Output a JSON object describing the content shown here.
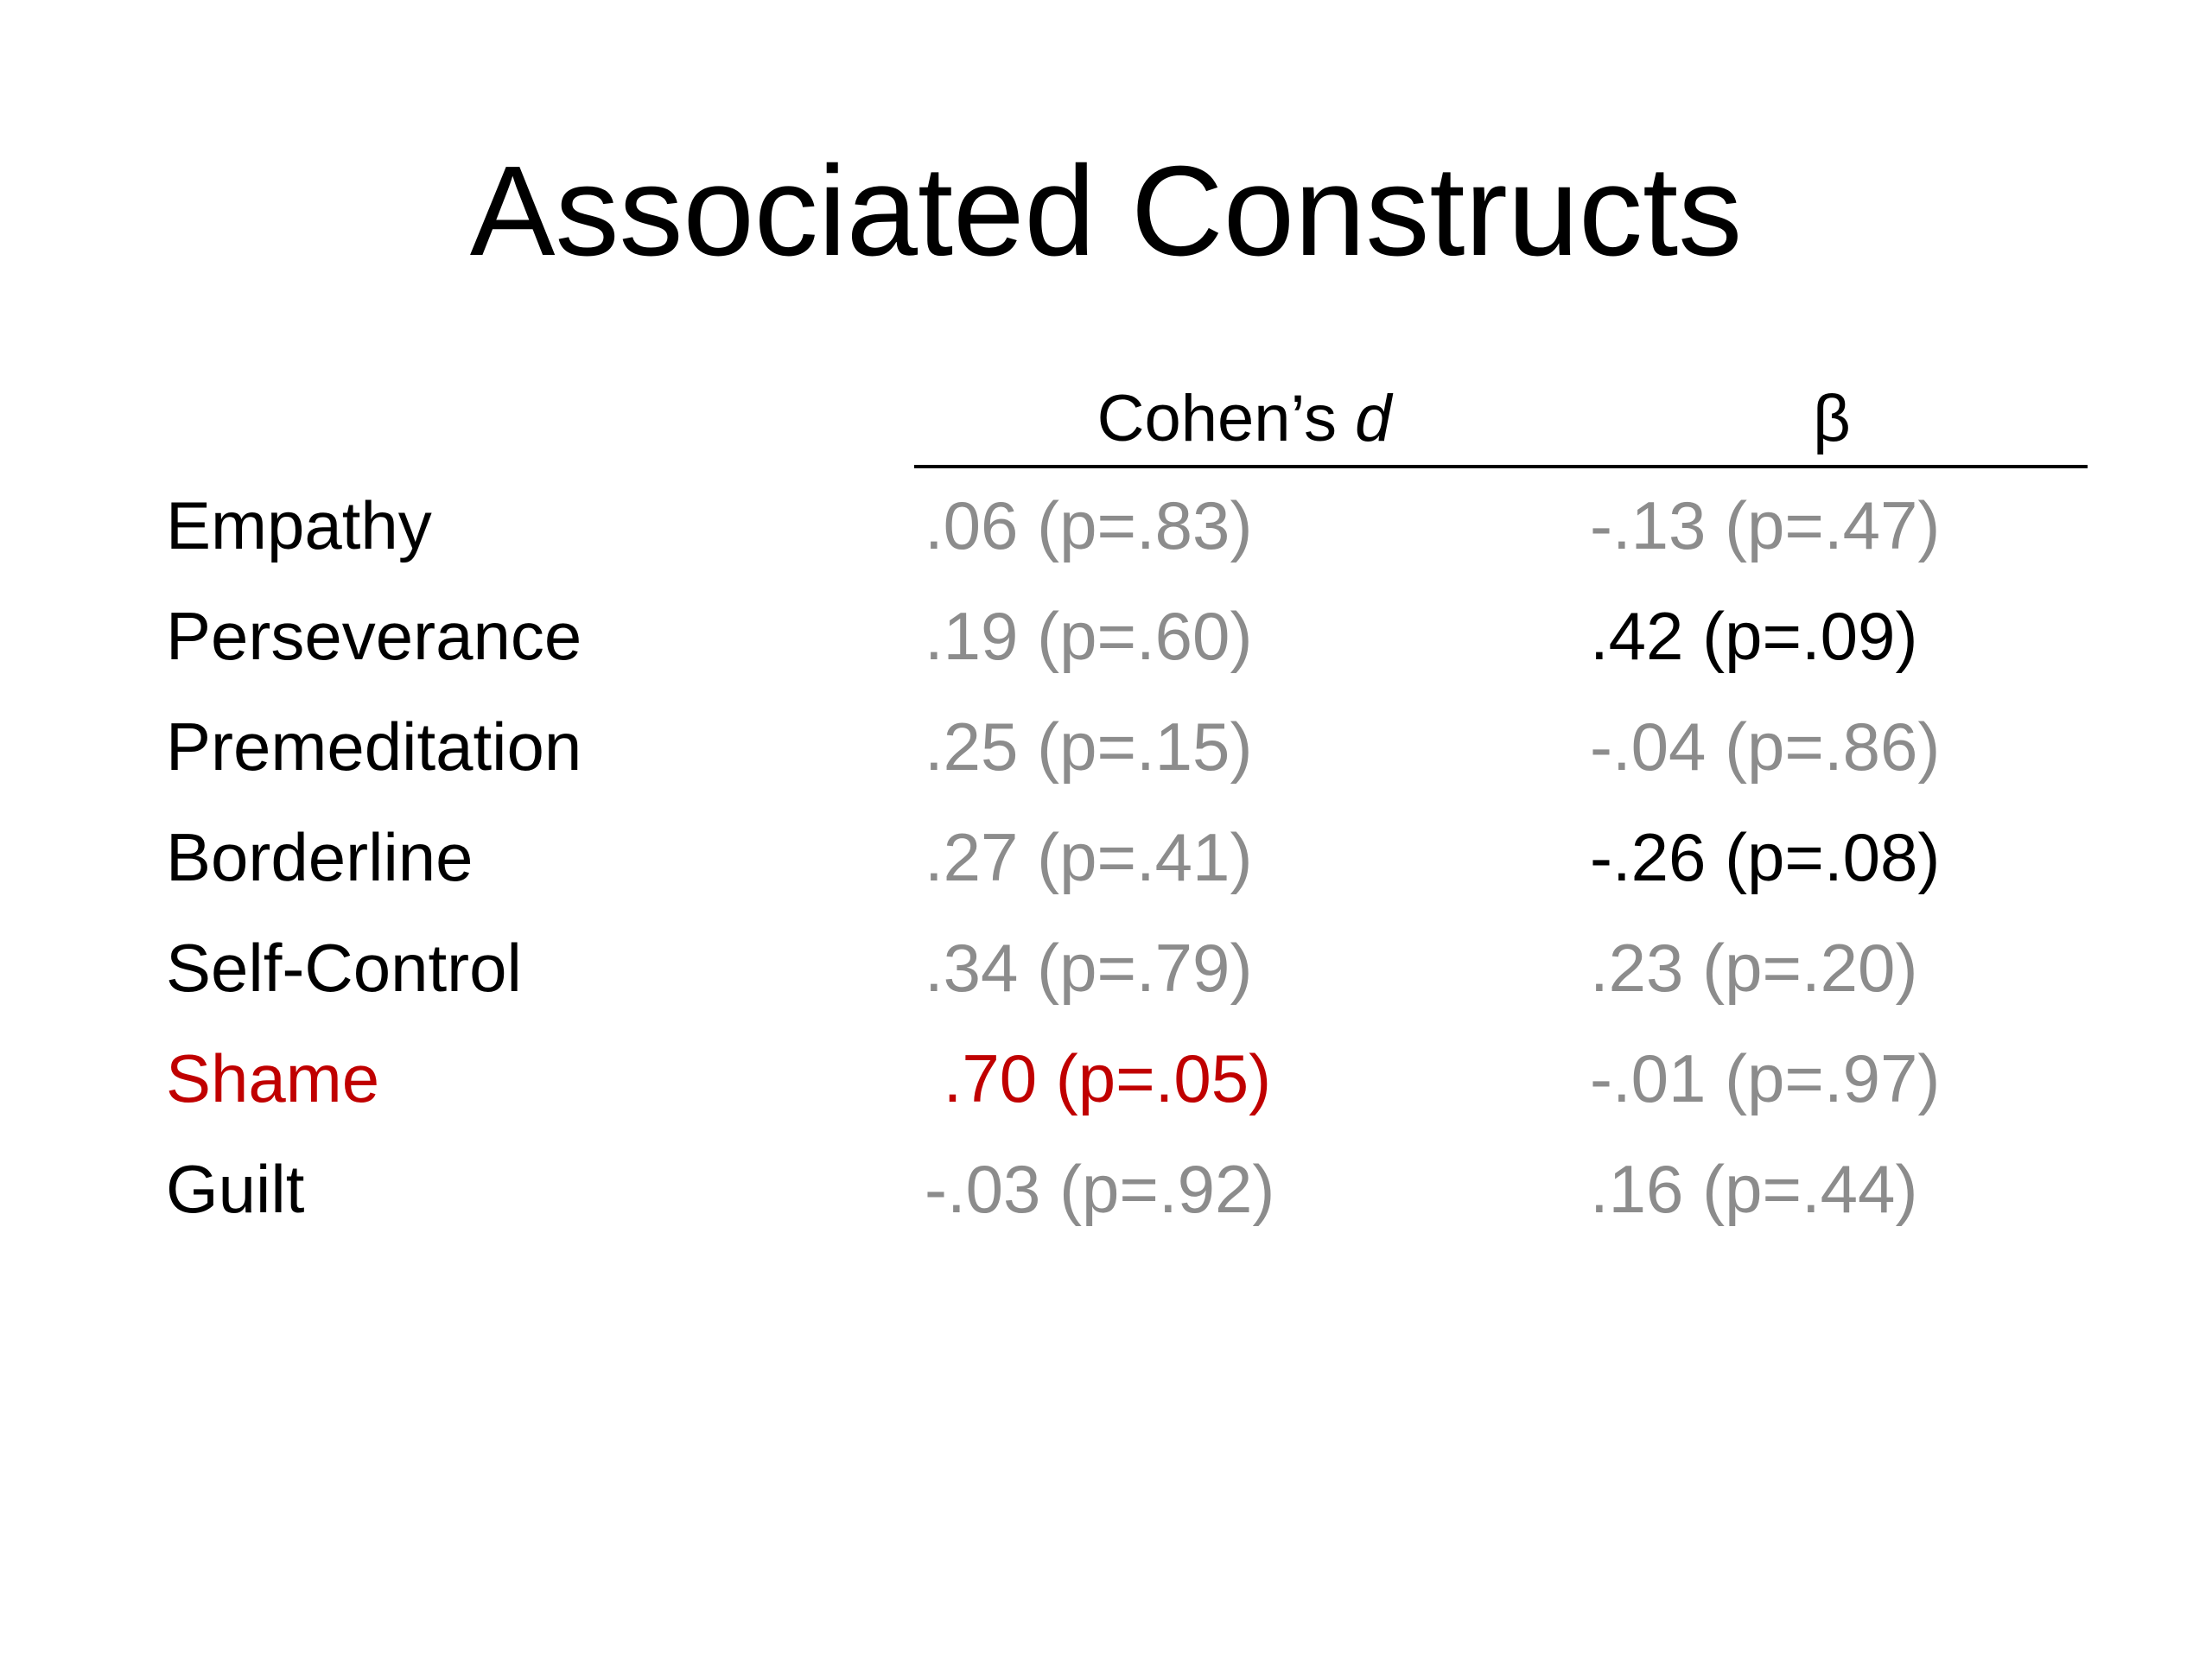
{
  "title": "Associated Constructs",
  "table": {
    "header": {
      "cohens_d_prefix": "Cohen’s ",
      "cohens_d_italic": "d",
      "beta": "β"
    },
    "rows": [
      {
        "label": "Empathy",
        "d": ".06 (p=.83)",
        "beta": "-.13 (p=.47)"
      },
      {
        "label": "Perseverance",
        "d": ".19 (p=.60)",
        "beta": ".42 (p=.09)"
      },
      {
        "label": "Premeditation",
        "d": ".25 (p=.15)",
        "beta": "-.04 (p=.86)"
      },
      {
        "label": "Borderline",
        "d": ".27 (p=.41)",
        "beta": "-.26 (p=.08)"
      },
      {
        "label": "Self-Control",
        "d": ".34 (p=.79)",
        "beta": ".23 (p=.20)"
      },
      {
        "label": "Shame",
        "d": " .70 (p=.05)",
        "beta": "-.01 (p=.97)"
      },
      {
        "label": "Guilt",
        "d": "-.03 (p=.92)",
        "beta": ".16 (p=.44)"
      }
    ]
  },
  "colors": {
    "default_text": "#000000",
    "nonsignificant": "#8c8c8c",
    "highlight": "#c00000"
  }
}
